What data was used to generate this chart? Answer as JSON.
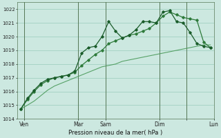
{
  "xlabel": "Pression niveau de la mer( hPa )",
  "bg_color": "#cce8e0",
  "grid_color": "#99ccbb",
  "dark_green": "#1a5c2a",
  "mid_green": "#2d7a3a",
  "light_green": "#4a9a5a",
  "ylim": [
    1014,
    1022.5
  ],
  "yticks": [
    1014,
    1015,
    1016,
    1017,
    1018,
    1019,
    1020,
    1021,
    1022
  ],
  "n_points": 29,
  "xlim": [
    -0.5,
    28.5
  ],
  "day_ticks": [
    0.5,
    8.5,
    12.5,
    20.5,
    24.5,
    28.5
  ],
  "day_labels": [
    "Ven",
    "Mar",
    "Sam",
    "Dim",
    "",
    "Lun"
  ],
  "vlines_x": [
    0.5,
    8.5,
    12.5,
    20.5,
    24.5
  ],
  "series1": [
    1014.7,
    1015.5,
    1016.1,
    1016.6,
    1016.9,
    1017.0,
    1017.1,
    1017.2,
    1017.5,
    1018.8,
    1019.2,
    1019.3,
    1020.0,
    1021.1,
    1020.4,
    1019.9,
    1020.1,
    1020.5,
    1021.1,
    1021.1,
    1021.0,
    1021.8,
    1021.9,
    1021.1,
    1021.0,
    1020.3,
    1019.5,
    1019.3,
    1019.2
  ],
  "series2": [
    1014.7,
    1015.4,
    1016.0,
    1016.5,
    1016.8,
    1017.0,
    1017.1,
    1017.2,
    1017.4,
    1017.9,
    1018.3,
    1018.7,
    1019.0,
    1019.5,
    1019.7,
    1019.9,
    1020.1,
    1020.2,
    1020.4,
    1020.6,
    1021.0,
    1021.5,
    1021.8,
    1021.6,
    1021.4,
    1021.3,
    1021.2,
    1019.6,
    1019.2
  ],
  "series3": [
    1014.7,
    1015.0,
    1015.3,
    1015.7,
    1016.1,
    1016.4,
    1016.6,
    1016.8,
    1017.0,
    1017.2,
    1017.4,
    1017.6,
    1017.8,
    1017.9,
    1018.0,
    1018.2,
    1018.3,
    1018.4,
    1018.5,
    1018.6,
    1018.7,
    1018.8,
    1018.9,
    1019.0,
    1019.1,
    1019.2,
    1019.3,
    1019.4,
    1019.4
  ]
}
